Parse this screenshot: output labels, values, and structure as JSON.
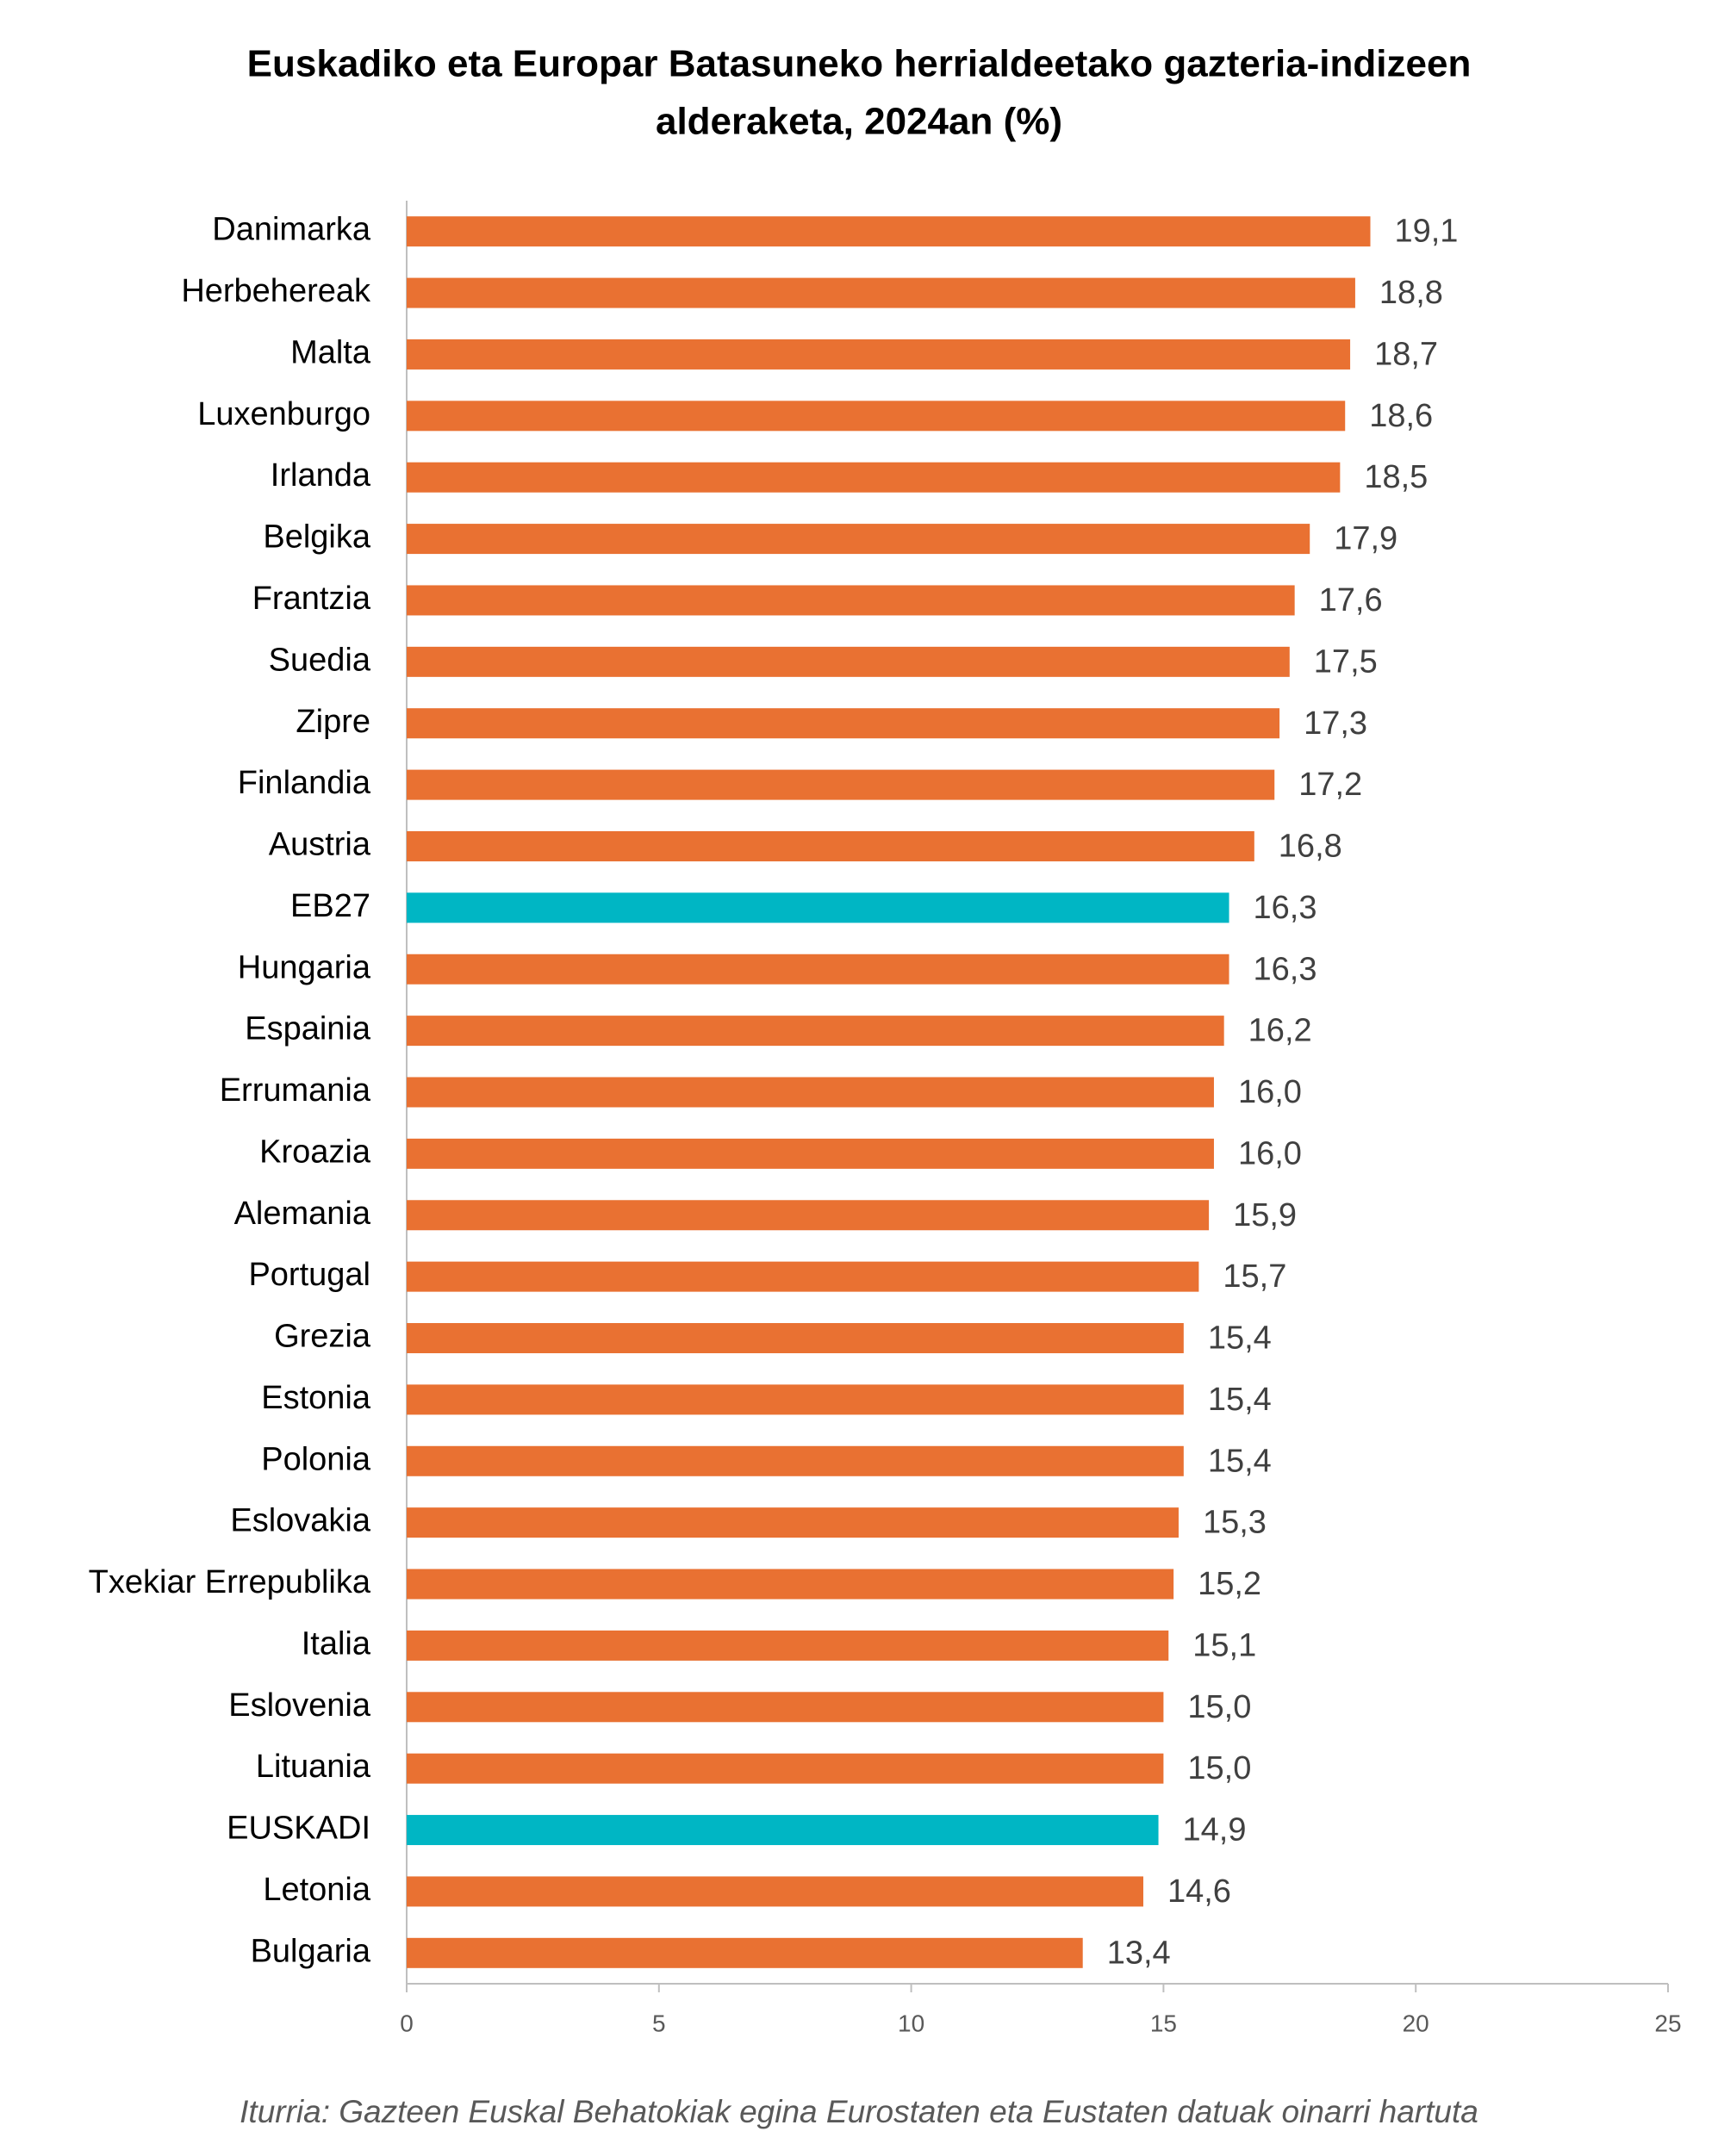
{
  "chart_data": {
    "type": "hbar",
    "title": [
      "Euskadiko eta Europar Batasuneko herrialdeetako gazteria-indizeen",
      "alderaketa, 2024an (%)"
    ],
    "categories": [
      "Danimarka",
      "Herbehereak",
      "Malta",
      "Luxenburgo",
      "Irlanda",
      "Belgika",
      "Frantzia",
      "Suedia",
      "Zipre",
      "Finlandia",
      "Austria",
      "EB27",
      "Hungaria",
      "Espainia",
      "Errumania",
      "Kroazia",
      "Alemania",
      "Portugal",
      "Grezia",
      "Estonia",
      "Polonia",
      "Eslovakia",
      "Txekiar Errepublika",
      "Italia",
      "Eslovenia",
      "Lituania",
      "EUSKADI",
      "Letonia",
      "Bulgaria"
    ],
    "values": [
      19.1,
      18.8,
      18.7,
      18.6,
      18.5,
      17.9,
      17.6,
      17.5,
      17.3,
      17.2,
      16.8,
      16.3,
      16.3,
      16.2,
      16.0,
      16.0,
      15.9,
      15.7,
      15.4,
      15.4,
      15.4,
      15.3,
      15.2,
      15.1,
      15.0,
      15.0,
      14.9,
      14.6,
      13.4
    ],
    "value_labels": [
      "19,1",
      "18,8",
      "18,7",
      "18,6",
      "18,5",
      "17,9",
      "17,6",
      "17,5",
      "17,3",
      "17,2",
      "16,8",
      "16,3",
      "16,3",
      "16,2",
      "16,0",
      "16,0",
      "15,9",
      "15,7",
      "15,4",
      "15,4",
      "15,4",
      "15,3",
      "15,2",
      "15,1",
      "15,0",
      "15,0",
      "14,9",
      "14,6",
      "13,4"
    ],
    "colors": [
      "#E97132",
      "#E97132",
      "#E97132",
      "#E97132",
      "#E97132",
      "#E97132",
      "#E97132",
      "#E97132",
      "#E97132",
      "#E97132",
      "#E97132",
      "#00B6C4",
      "#E97132",
      "#E97132",
      "#E97132",
      "#E97132",
      "#E97132",
      "#E97132",
      "#E97132",
      "#E97132",
      "#E97132",
      "#E97132",
      "#E97132",
      "#E97132",
      "#E97132",
      "#E97132",
      "#00B6C4",
      "#E97132",
      "#E97132"
    ],
    "xlim": [
      0,
      25
    ],
    "xticks": [
      0,
      5,
      10,
      15,
      20,
      25
    ],
    "source": "Iturria: Gazteen Euskal Behatokiak egina Eurostaten eta Eustaten datuak oinarri hartuta"
  }
}
